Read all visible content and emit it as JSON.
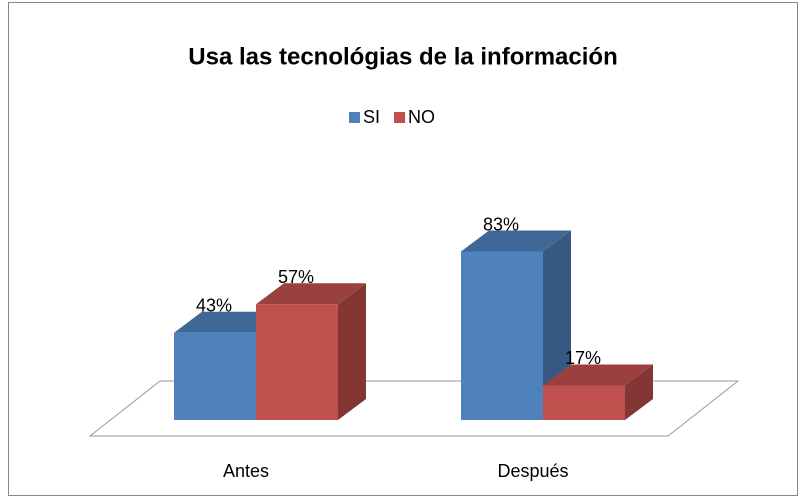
{
  "chart_data": {
    "type": "bar",
    "title": "Usa las tecnológias de la información",
    "categories": [
      "Antes",
      "Después"
    ],
    "series": [
      {
        "name": "SI",
        "color": "#4f81bd",
        "values": [
          43,
          83
        ],
        "value_labels": [
          "43%",
          "83%"
        ]
      },
      {
        "name": "NO",
        "color": "#c0504d",
        "values": [
          57,
          17
        ],
        "value_labels": [
          "57%",
          "17%"
        ]
      }
    ],
    "legend": "top"
  }
}
